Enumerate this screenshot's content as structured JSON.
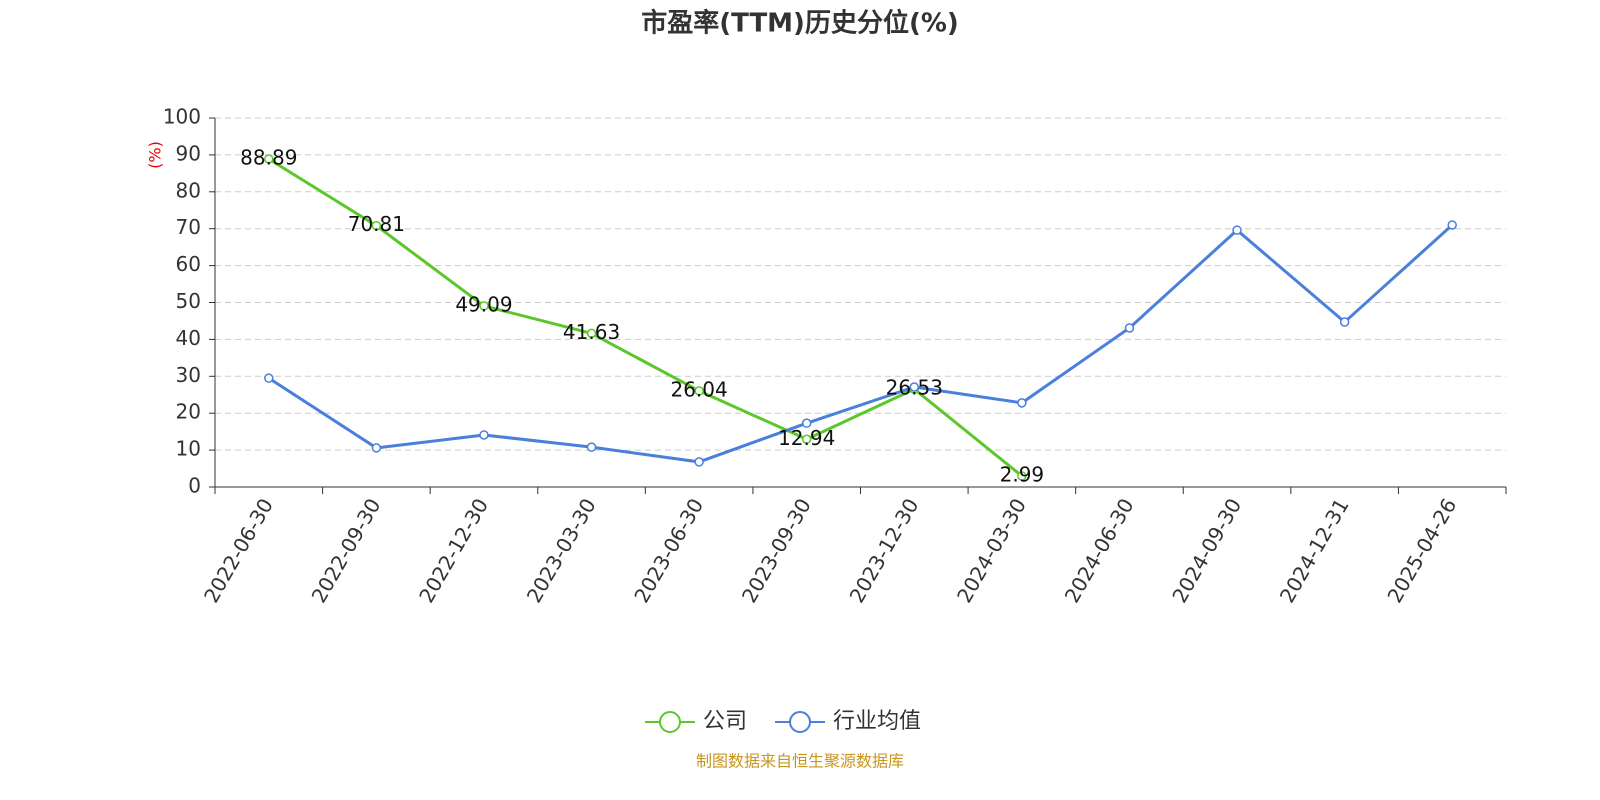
{
  "chart_data": {
    "type": "line",
    "title": "市盈率(TTM)历史分位(%)",
    "y_label": "(%)",
    "source": "制图数据来自恒生聚源数据库",
    "categories": [
      "2022-06-30",
      "2022-09-30",
      "2022-12-30",
      "2023-03-30",
      "2023-06-30",
      "2023-09-30",
      "2023-12-30",
      "2024-03-30",
      "2024-06-30",
      "2024-09-30",
      "2024-12-31",
      "2025-04-26"
    ],
    "series": [
      {
        "name": "公司",
        "color": "#5cc72a",
        "values": [
          88.89,
          70.81,
          49.09,
          41.63,
          26.04,
          12.94,
          26.53,
          2.99,
          null,
          null,
          null,
          null
        ]
      },
      {
        "name": "行业均值",
        "color": "#4a7fdc",
        "values": [
          29.5,
          10.6,
          14.1,
          10.8,
          6.8,
          17.3,
          27.1,
          22.8,
          43.1,
          69.6,
          44.7,
          71.0
        ]
      }
    ],
    "ylim": [
      0,
      100
    ],
    "yticks": [
      0,
      10,
      20,
      30,
      40,
      50,
      60,
      70,
      80,
      90,
      100
    ],
    "grid": true,
    "data_labels_series": 0,
    "legend": "bottom"
  }
}
